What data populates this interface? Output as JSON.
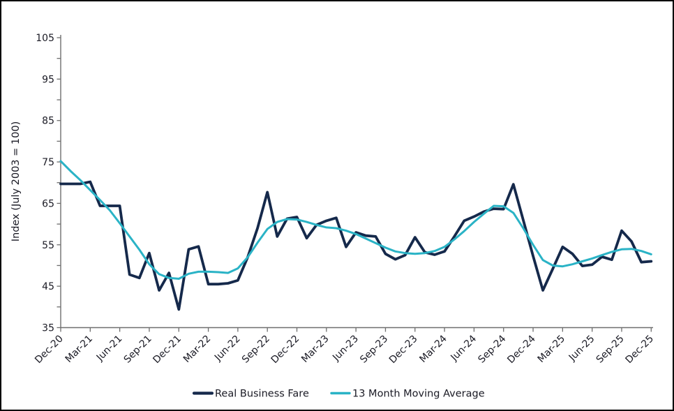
{
  "window": {
    "background": "#ffffff",
    "border_color": "#000000"
  },
  "y_axis": {
    "title": "Index (July 2003 = 100)",
    "tick_labels": [
      "105",
      "95",
      "85",
      "75",
      "65",
      "55",
      "45",
      "35"
    ],
    "min": 35,
    "max": 105,
    "label_step": 10,
    "minor_tick_step": 5
  },
  "legend": [
    {
      "label": "Real Business Fare",
      "color": "#15294b"
    },
    {
      "label": "13 Month Moving Average",
      "color": "#2ab3c6"
    }
  ],
  "chart_data": {
    "type": "line",
    "title": "",
    "xlabel": "",
    "ylabel": "Index (July 2003 = 100)",
    "ylim": [
      35,
      105
    ],
    "grid": false,
    "legend_position": "bottom",
    "x_tick_labels": [
      "Dec-20",
      "Mar-21",
      "Jun-21",
      "Sep-21",
      "Dec-21",
      "Mar-22",
      "Jun-22",
      "Sep-22",
      "Dec-22",
      "Mar-23",
      "Jun-23",
      "Sep-23",
      "Dec-23",
      "Mar-24",
      "Jun-24",
      "Sep-24",
      "Dec-24",
      "Mar-25",
      "Jun-25",
      "Sep-25",
      "Dec-25"
    ],
    "months": [
      "Dec-20",
      "Jan-21",
      "Feb-21",
      "Mar-21",
      "Apr-21",
      "May-21",
      "Jun-21",
      "Jul-21",
      "Aug-21",
      "Sep-21",
      "Oct-21",
      "Nov-21",
      "Dec-21",
      "Jan-22",
      "Feb-22",
      "Mar-22",
      "Apr-22",
      "May-22",
      "Jun-22",
      "Jul-22",
      "Aug-22",
      "Sep-22",
      "Oct-22",
      "Nov-22",
      "Dec-22",
      "Jan-23",
      "Feb-23",
      "Mar-23",
      "Apr-23",
      "May-23",
      "Jun-23",
      "Jul-23",
      "Aug-23",
      "Sep-23",
      "Oct-23",
      "Nov-23",
      "Dec-23",
      "Jan-24",
      "Feb-24",
      "Mar-24",
      "Apr-24",
      "May-24",
      "Jun-24",
      "Jul-24",
      "Aug-24",
      "Sep-24",
      "Oct-24",
      "Nov-24",
      "Dec-24",
      "Jan-25",
      "Feb-25",
      "Mar-25",
      "Apr-25",
      "May-25",
      "Jun-25",
      "Jul-25",
      "Aug-25",
      "Sep-25",
      "Oct-25",
      "Nov-25",
      "Dec-25"
    ],
    "series": [
      {
        "name": "Real Business Fare",
        "color": "#15294b",
        "stroke_width": 3.8,
        "values": [
          69.7,
          69.7,
          69.7,
          70.2,
          64.4,
          64.4,
          64.4,
          47.8,
          47.0,
          53.0,
          44.0,
          48.2,
          39.4,
          53.9,
          54.6,
          45.5,
          45.5,
          45.7,
          46.4,
          52.0,
          59.0,
          67.7,
          57.0,
          61.3,
          61.7,
          56.6,
          59.8,
          60.8,
          61.5,
          54.5,
          58.0,
          57.2,
          57.0,
          52.8,
          51.5,
          52.5,
          56.8,
          53.2,
          52.6,
          53.4,
          57.0,
          60.8,
          61.8,
          63.0,
          63.7,
          63.6,
          69.6,
          61.0,
          52.3,
          44.0,
          49.2,
          54.5,
          52.8,
          49.9,
          50.2,
          52.1,
          51.4,
          58.4,
          55.8,
          50.8,
          51.0
        ]
      },
      {
        "name": "13 Month Moving Average",
        "color": "#2ab3c6",
        "stroke_width": 3.0,
        "values": [
          75.2,
          72.8,
          70.6,
          68.2,
          65.8,
          63.3,
          60.2,
          57.0,
          53.8,
          50.3,
          47.9,
          47.0,
          46.8,
          48.0,
          48.5,
          48.5,
          48.4,
          48.2,
          49.3,
          52.0,
          55.5,
          58.8,
          60.5,
          61.2,
          61.1,
          60.5,
          59.8,
          59.2,
          59.0,
          58.4,
          57.6,
          56.5,
          55.4,
          54.3,
          53.4,
          53.0,
          52.8,
          53.0,
          53.5,
          54.5,
          56.3,
          58.3,
          60.5,
          62.5,
          64.4,
          64.3,
          62.7,
          59.0,
          55.0,
          51.3,
          50.0,
          49.8,
          50.3,
          51.0,
          51.7,
          52.5,
          53.3,
          53.9,
          54.0,
          53.5,
          52.7
        ]
      }
    ]
  }
}
